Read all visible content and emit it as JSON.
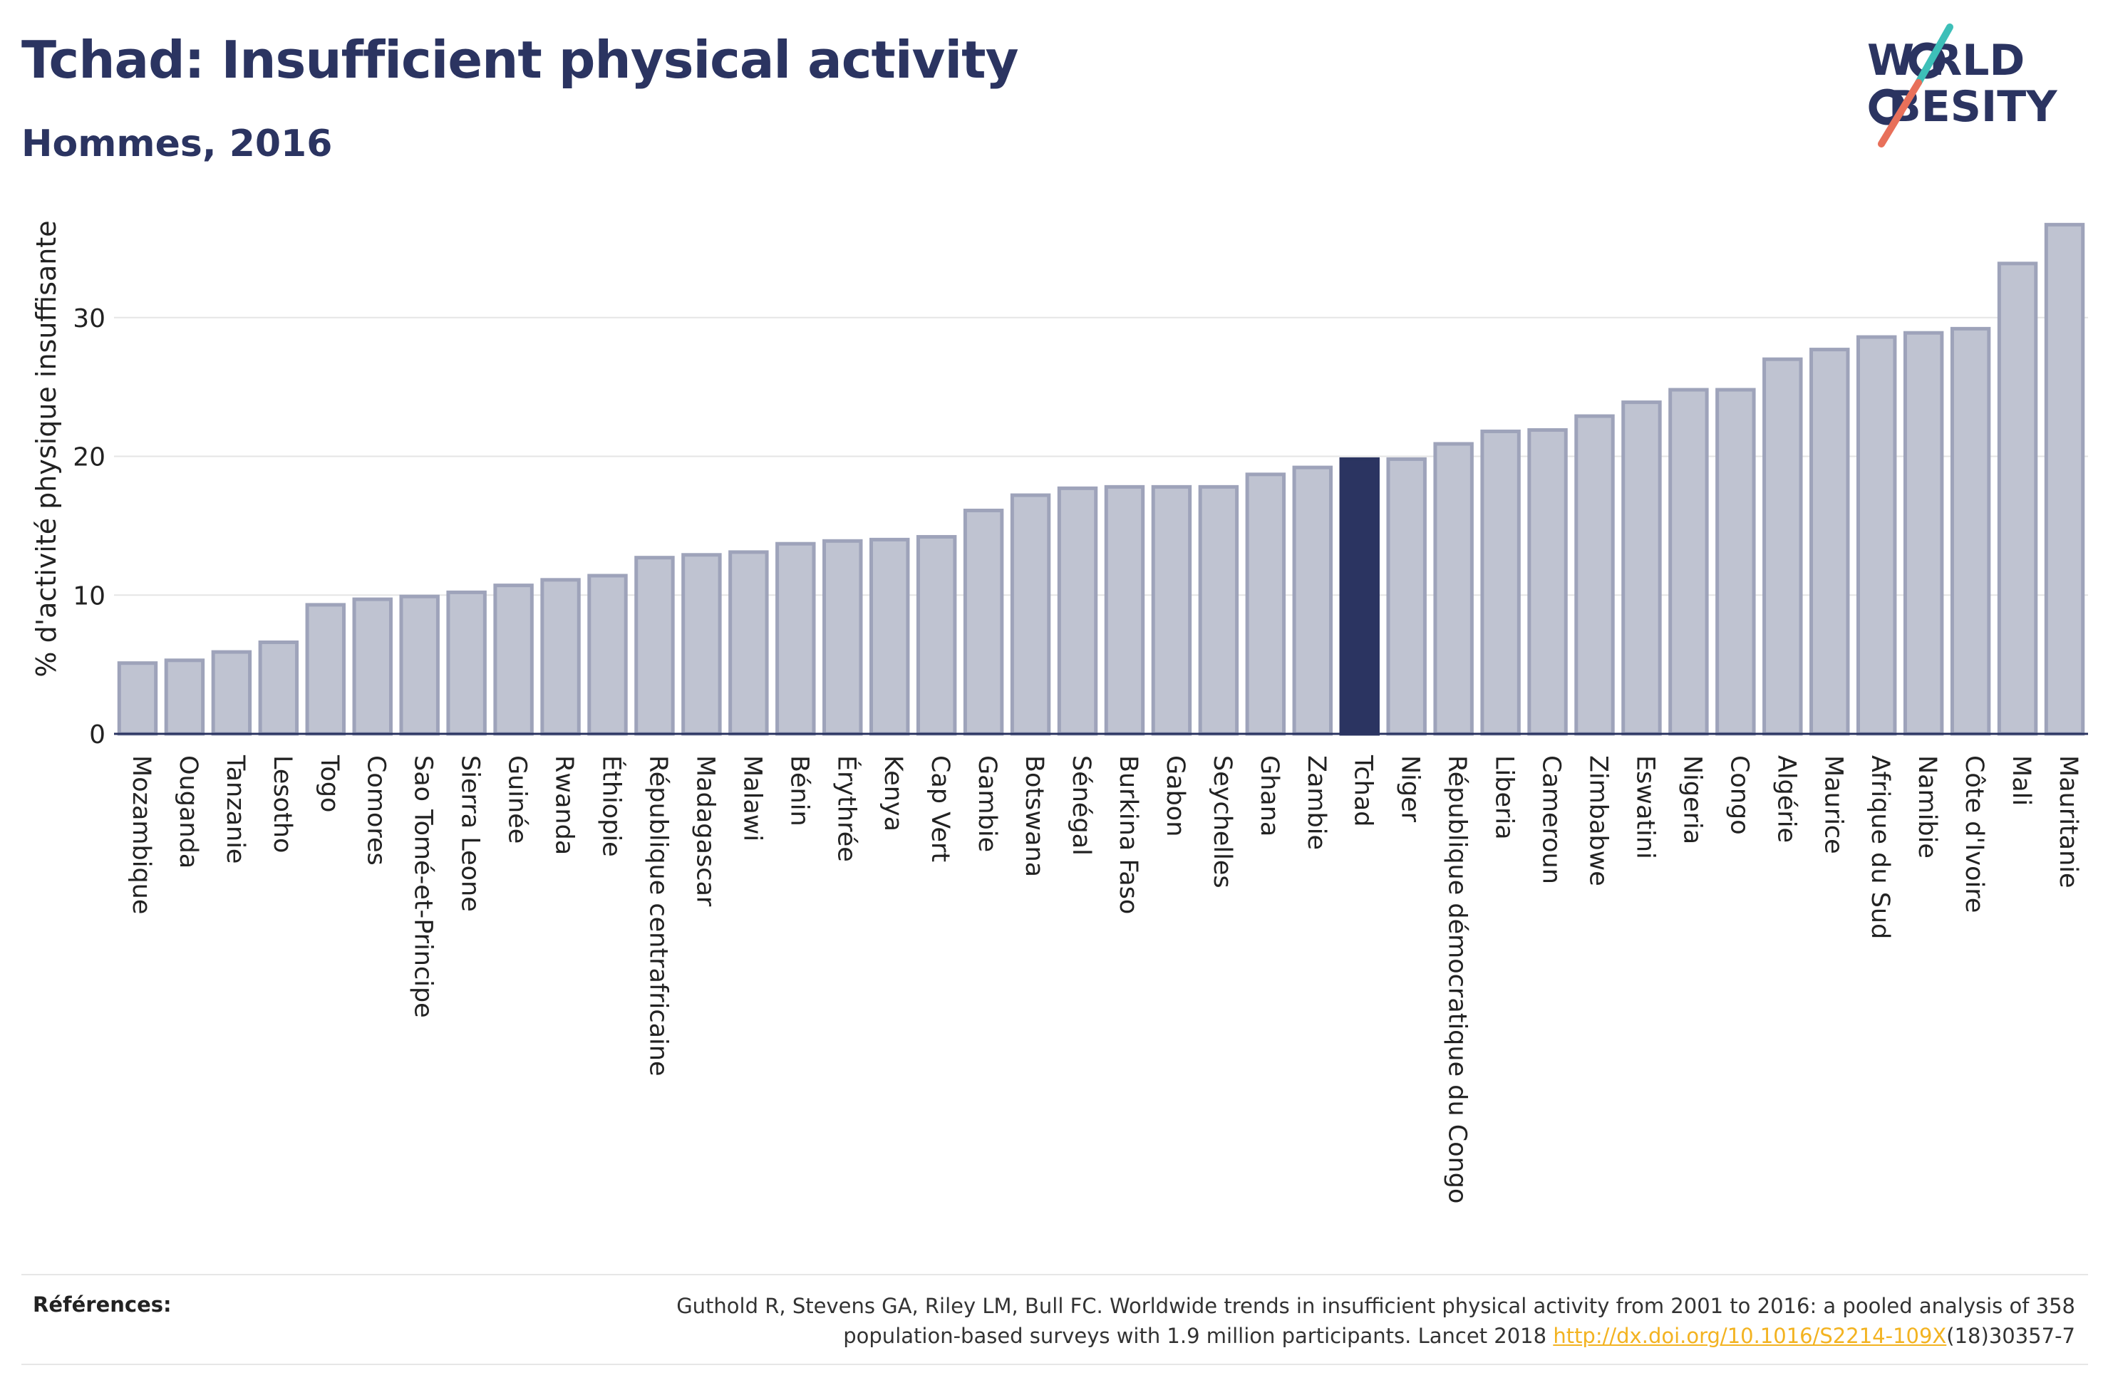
{
  "header": {
    "title": "Tchad: Insufficient physical activity",
    "subtitle": "Hommes, 2016"
  },
  "logo": {
    "line1": "W RLD",
    "line2": "BESITY"
  },
  "colors": {
    "highlight": "#2b3461",
    "bar_fill": "#bfc3d1",
    "bar_stroke": "#9ea3ba",
    "link": "#f3b321",
    "logo_teal": "#3dbfb8",
    "logo_coral": "#e8705a"
  },
  "chart_data": {
    "type": "bar",
    "title": "Tchad: Insufficient physical activity",
    "subtitle": "Hommes, 2016",
    "xlabel": "",
    "ylabel": "% d'activité physique insuffisante",
    "ylim": [
      0,
      38
    ],
    "yticks": [
      0,
      10,
      20,
      30
    ],
    "grid": "horizontal",
    "highlight": "Tchad",
    "categories": [
      "Mozambique",
      "Ouganda",
      "Tanzanie",
      "Lesotho",
      "Togo",
      "Comores",
      "Sao Tomé-et-Principe",
      "Sierra Leone",
      "Guinée",
      "Rwanda",
      "Éthiopie",
      "République centrafricaine",
      "Madagascar",
      "Malawi",
      "Bénin",
      "Érythrée",
      "Kenya",
      "Cap Vert",
      "Gambie",
      "Botswana",
      "Sénégal",
      "Burkina Faso",
      "Gabon",
      "Seychelles",
      "Ghana",
      "Zambie",
      "Tchad",
      "Niger",
      "République démocratique du Congo",
      "Liberia",
      "Cameroun",
      "Zimbabwe",
      "Eswatini",
      "Nigeria",
      "Congo",
      "Algérie",
      "Maurice",
      "Afrique du Sud",
      "Namibie",
      "Côte d'Ivoire",
      "Mali",
      "Mauritanie"
    ],
    "values": [
      5.1,
      5.3,
      5.9,
      6.6,
      9.3,
      9.7,
      9.9,
      10.2,
      10.7,
      11.1,
      11.4,
      12.7,
      12.9,
      13.1,
      13.7,
      13.9,
      14.0,
      14.2,
      16.1,
      17.2,
      17.7,
      17.8,
      17.8,
      17.8,
      18.7,
      19.2,
      19.8,
      19.8,
      20.9,
      21.8,
      21.9,
      22.9,
      23.9,
      24.8,
      24.8,
      27.0,
      27.7,
      28.6,
      28.9,
      29.2,
      33.9,
      36.7
    ]
  },
  "references": {
    "label": "Références:",
    "line1": "Guthold R, Stevens GA, Riley LM, Bull FC. Worldwide trends in insufficient physical activity from 2001 to 2016: a pooled analysis of 358",
    "line2_pre": "population-based surveys with 1.9 million participants. Lancet 2018 ",
    "link": "http://dx.doi.org/10.1016/S2214-109X",
    "line2_post": "(18)30357-7"
  }
}
